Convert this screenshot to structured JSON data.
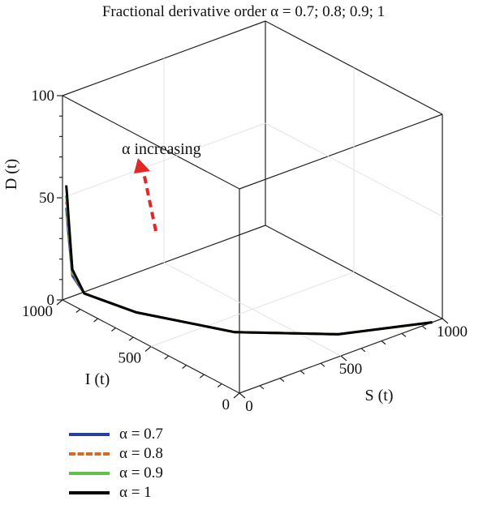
{
  "chart_data": {
    "type": "line",
    "projection": "3d",
    "title": "Fractional derivative order α = 0.7; 0.8; 0.9; 1",
    "xlabel": "S (t)",
    "ylabel": "I (t)",
    "zlabel": "D (t)",
    "xlim": [
      0,
      1000
    ],
    "ylim": [
      0,
      1000
    ],
    "zlim": [
      0,
      100
    ],
    "xticks": [
      "0",
      "500",
      "1000"
    ],
    "yticks": [
      "0",
      "500",
      "1000"
    ],
    "zticks": [
      "0",
      "50",
      "100"
    ],
    "grid": true,
    "legend_position": "bottom-left",
    "annotation": "α increasing",
    "series": [
      {
        "name": "α = 0.7",
        "color": "#2b3f9e",
        "dash": "solid",
        "points": [
          [
            950,
            0,
            0
          ],
          [
            600,
            130,
            1
          ],
          [
            300,
            370,
            2
          ],
          [
            100,
            700,
            4
          ],
          [
            20,
            900,
            7
          ],
          [
            5,
            950,
            14
          ],
          [
            3,
            960,
            25
          ],
          [
            2,
            970,
            35
          ],
          [
            1,
            975,
            42
          ],
          [
            1,
            980,
            46
          ]
        ]
      },
      {
        "name": "α = 0.8",
        "color": "#d36a2a",
        "dash": "dashed",
        "points": [
          [
            950,
            0,
            0
          ],
          [
            600,
            130,
            1
          ],
          [
            300,
            370,
            2
          ],
          [
            100,
            700,
            4
          ],
          [
            20,
            900,
            7
          ],
          [
            5,
            950,
            15
          ],
          [
            3,
            960,
            27
          ],
          [
            2,
            970,
            38
          ],
          [
            1,
            975,
            45
          ],
          [
            1,
            980,
            49
          ]
        ]
      },
      {
        "name": "α = 0.9",
        "color": "#5fc04a",
        "dash": "solid",
        "points": [
          [
            950,
            0,
            0
          ],
          [
            600,
            130,
            1
          ],
          [
            300,
            370,
            2
          ],
          [
            100,
            700,
            4
          ],
          [
            20,
            900,
            7
          ],
          [
            5,
            950,
            16
          ],
          [
            3,
            960,
            29
          ],
          [
            2,
            970,
            41
          ],
          [
            1,
            975,
            48
          ],
          [
            1,
            980,
            52
          ]
        ]
      },
      {
        "name": "α = 1",
        "color": "#000000",
        "dash": "solid",
        "points": [
          [
            950,
            0,
            0
          ],
          [
            600,
            130,
            1
          ],
          [
            300,
            370,
            2
          ],
          [
            100,
            700,
            4
          ],
          [
            20,
            900,
            7
          ],
          [
            5,
            950,
            17
          ],
          [
            3,
            960,
            31
          ],
          [
            2,
            970,
            44
          ],
          [
            1,
            975,
            52
          ],
          [
            1,
            980,
            57
          ]
        ]
      }
    ]
  }
}
